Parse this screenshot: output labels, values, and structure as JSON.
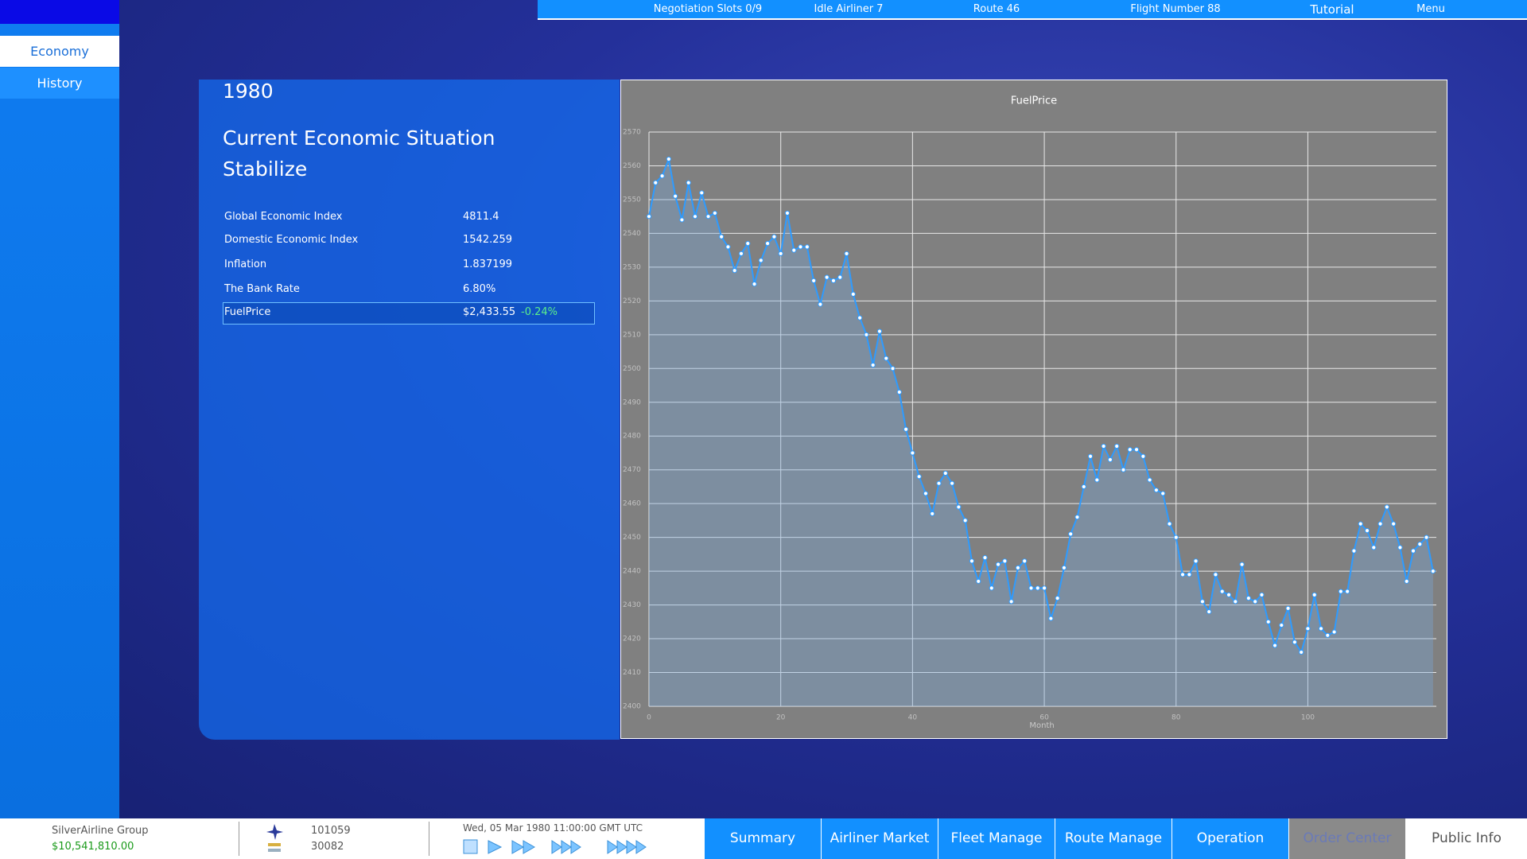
{
  "top_bar": {
    "items": [
      "Negotiation Slots 0/9",
      "Idle Airliner 7",
      "Route 46",
      "Flight Number 88",
      "Tutorial",
      "Menu"
    ]
  },
  "sidebar": {
    "tabs": [
      "Economy",
      "History"
    ]
  },
  "panel": {
    "year": "1980",
    "heading": "Current Economic Situation",
    "status": "Stabilize",
    "rows": [
      {
        "label": "Global Economic Index",
        "value": "4811.4"
      },
      {
        "label": "Domestic Economic Index",
        "value": "1542.259"
      },
      {
        "label": "Inflation",
        "value": "1.837199"
      },
      {
        "label": "The Bank Rate",
        "value": "6.80%"
      },
      {
        "label": "FuelPrice",
        "value": "$2,433.55",
        "change": "-0.24%"
      }
    ]
  },
  "chart_data": {
    "type": "line",
    "title": "FuelPrice",
    "x_label": "Month",
    "color": "#2e9bff",
    "fill_area": true,
    "grid": true,
    "x": [
      0,
      1,
      2,
      3,
      4,
      5,
      6,
      7,
      8,
      9,
      10,
      11,
      12,
      13,
      14,
      15,
      16,
      17,
      18,
      19,
      20,
      21,
      22,
      23,
      24,
      25,
      26,
      27,
      28,
      29,
      30,
      31,
      32,
      33,
      34,
      35,
      36,
      37,
      38,
      39,
      40,
      41,
      42,
      43,
      44,
      45,
      46,
      47,
      48,
      49,
      50,
      51,
      52,
      53,
      54,
      55,
      56,
      57,
      58,
      59,
      60,
      61,
      62,
      63,
      64,
      65,
      66,
      67,
      68,
      69,
      70,
      71,
      72,
      73,
      74,
      75,
      76,
      77,
      78,
      79,
      80,
      81,
      82,
      83,
      84,
      85,
      86,
      87,
      88,
      89,
      90,
      91,
      92,
      93,
      94,
      95,
      96,
      97,
      98,
      99,
      100,
      101,
      102,
      103,
      104,
      105,
      106,
      107,
      108,
      109,
      110,
      111,
      112,
      113,
      114,
      115,
      116,
      117,
      118,
      119
    ],
    "values": [
      2545,
      2555,
      2557,
      2562,
      2551,
      2544,
      2555,
      2545,
      2552,
      2545,
      2546,
      2539,
      2536,
      2529,
      2534,
      2537,
      2525,
      2532,
      2537,
      2539,
      2534,
      2546,
      2535,
      2536,
      2536,
      2526,
      2519,
      2527,
      2526,
      2527,
      2534,
      2522,
      2515,
      2510,
      2501,
      2511,
      2503,
      2500,
      2493,
      2482,
      2475,
      2468,
      2463,
      2457,
      2466,
      2469,
      2466,
      2459,
      2455,
      2443,
      2437,
      2444,
      2435,
      2442,
      2443,
      2431,
      2441,
      2443,
      2435,
      2435,
      2435,
      2426,
      2432,
      2441,
      2451,
      2456,
      2465,
      2474,
      2467,
      2477,
      2473,
      2477,
      2470,
      2476,
      2476,
      2474,
      2467,
      2464,
      2463,
      2454,
      2450,
      2439,
      2439,
      2443,
      2431,
      2428,
      2439,
      2434,
      2433,
      2431,
      2442,
      2432,
      2431,
      2433,
      2425,
      2418,
      2424,
      2429,
      2419,
      2416,
      2423,
      2433,
      2423,
      2421,
      2422,
      2434,
      2434,
      2446,
      2454,
      2452,
      2447,
      2454,
      2459,
      2454,
      2447,
      2437,
      2446,
      2448,
      2450,
      2440
    ],
    "xlim": [
      0,
      119.5
    ],
    "xticks": [
      0,
      20,
      40,
      60,
      80,
      100
    ],
    "ylim": [
      2400,
      2570
    ],
    "yticks": [
      2400,
      2410,
      2420,
      2430,
      2440,
      2450,
      2460,
      2470,
      2480,
      2490,
      2500,
      2510,
      2520,
      2530,
      2540,
      2550,
      2560,
      2570
    ]
  },
  "bottom_bar": {
    "company": "SilverAirline Group",
    "cash": "$10,541,810.00",
    "stat_top": "101059",
    "stat_bottom": "30082",
    "date": "Wed, 05 Mar 1980 11:00:00 GMT UTC",
    "tabs": [
      "Summary",
      "Airliner Market",
      "Fleet Manage",
      "Route Manage",
      "Operation",
      "Order Center",
      "Public Info"
    ]
  }
}
